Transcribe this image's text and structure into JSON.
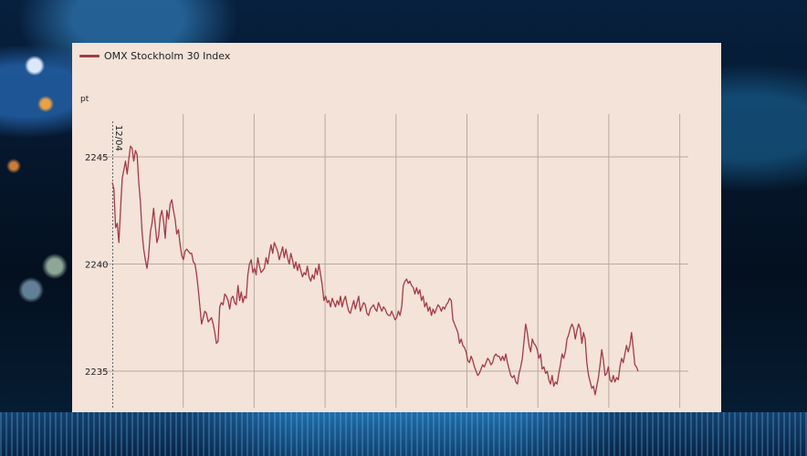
{
  "chart_data": {
    "type": "line",
    "legend": "OMX Stockholm 30 Index",
    "unit": "pt",
    "date_label": "12/04",
    "ylim": [
      2233.3,
      2247.0
    ],
    "yticks": [
      2235,
      2240,
      2245
    ],
    "series": [
      {
        "name": "OMX Stockholm 30 Index",
        "color": "#a33a47",
        "values": [
          2243.8,
          2243.5,
          2241.7,
          2241.9,
          2241.0,
          2242.6,
          2244.0,
          2244.4,
          2244.8,
          2244.2,
          2244.9,
          2245.5,
          2245.4,
          2244.8,
          2245.3,
          2245.1,
          2243.8,
          2242.9,
          2241.5,
          2240.7,
          2240.2,
          2239.8,
          2240.4,
          2241.5,
          2241.9,
          2242.6,
          2241.8,
          2241.0,
          2241.3,
          2242.2,
          2242.5,
          2242.0,
          2241.2,
          2242.5,
          2242.1,
          2242.8,
          2243.0,
          2242.5,
          2242.1,
          2241.4,
          2241.6,
          2240.9,
          2240.4,
          2240.2,
          2240.6,
          2240.7,
          2240.6,
          2240.5,
          2240.5,
          2240.1,
          2240.0,
          2239.5,
          2238.8,
          2238.0,
          2237.2,
          2237.5,
          2237.8,
          2237.7,
          2237.3,
          2237.4,
          2237.5,
          2237.2,
          2236.8,
          2236.3,
          2236.4,
          2238.0,
          2238.2,
          2238.1,
          2238.6,
          2238.5,
          2238.3,
          2237.9,
          2238.4,
          2238.5,
          2238.2,
          2238.1,
          2239.0,
          2238.3,
          2238.7,
          2238.2,
          2238.5,
          2238.4,
          2239.5,
          2240.0,
          2240.2,
          2239.6,
          2239.8,
          2239.5,
          2240.3,
          2239.9,
          2239.6,
          2239.7,
          2239.8,
          2240.3,
          2240.0,
          2240.5,
          2240.9,
          2240.5,
          2241.0,
          2240.8,
          2240.6,
          2240.2,
          2240.5,
          2240.8,
          2240.3,
          2240.7,
          2240.3,
          2240.0,
          2240.5,
          2240.2,
          2239.8,
          2240.1,
          2239.7,
          2240.0,
          2239.7,
          2239.4,
          2239.6,
          2239.5,
          2239.9,
          2239.4,
          2239.2,
          2239.5,
          2239.3,
          2239.8,
          2239.5,
          2240.0,
          2239.5,
          2239.0,
          2238.3,
          2238.5,
          2238.2,
          2238.3,
          2238.0,
          2238.4,
          2238.2,
          2238.0,
          2238.3,
          2238.1,
          2238.5,
          2238.0,
          2238.3,
          2238.5,
          2238.1,
          2237.8,
          2237.7,
          2238.0,
          2238.3,
          2237.9,
          2238.2,
          2238.5,
          2237.8,
          2238.0,
          2238.2,
          2238.1,
          2237.7,
          2237.6,
          2237.9,
          2238.0,
          2238.1,
          2237.9,
          2237.8,
          2238.2,
          2238.0,
          2237.8,
          2238.0,
          2237.9,
          2237.7,
          2237.6,
          2237.6,
          2237.8,
          2237.6,
          2237.4,
          2237.5,
          2237.8,
          2237.6,
          2238.0,
          2239.0,
          2239.2,
          2239.3,
          2239.1,
          2239.2,
          2239.0,
          2238.9,
          2238.6,
          2238.9,
          2238.6,
          2238.8,
          2238.3,
          2238.5,
          2238.0,
          2238.2,
          2237.8,
          2238.0,
          2237.6,
          2237.9,
          2237.7,
          2237.9,
          2238.1,
          2238.0,
          2237.8,
          2238.0,
          2237.9,
          2238.1,
          2238.2,
          2238.4,
          2238.3,
          2237.4,
          2237.2,
          2237.0,
          2236.8,
          2236.3,
          2236.5,
          2236.2,
          2236.1,
          2235.9,
          2235.5,
          2235.4,
          2235.7,
          2235.5,
          2235.2,
          2235.0,
          2234.8,
          2234.9,
          2235.1,
          2235.3,
          2235.2,
          2235.4,
          2235.6,
          2235.5,
          2235.3,
          2235.4,
          2235.7,
          2235.8,
          2235.7,
          2235.7,
          2235.5,
          2235.7,
          2235.5,
          2235.8,
          2235.4,
          2235.1,
          2234.8,
          2234.7,
          2234.8,
          2234.5,
          2234.4,
          2234.9,
          2235.2,
          2235.6,
          2236.4,
          2237.2,
          2236.8,
          2236.2,
          2235.9,
          2236.5,
          2236.3,
          2236.2,
          2236.0,
          2235.6,
          2235.8,
          2235.1,
          2235.2,
          2234.9,
          2235.0,
          2234.6,
          2234.4,
          2234.8,
          2234.3,
          2234.5,
          2234.4,
          2234.9,
          2235.3,
          2235.8,
          2235.6,
          2235.9,
          2236.5,
          2236.7,
          2237.0,
          2237.2,
          2237.0,
          2236.5,
          2236.9,
          2237.2,
          2237.0,
          2236.3,
          2236.8,
          2236.5,
          2235.4,
          2234.8,
          2234.5,
          2234.2,
          2234.3,
          2233.9,
          2234.3,
          2234.7,
          2235.3,
          2236.0,
          2235.5,
          2234.8,
          2234.9,
          2235.2,
          2234.6,
          2234.5,
          2234.8,
          2234.5,
          2234.7,
          2234.6,
          2235.2,
          2235.6,
          2235.4,
          2235.8,
          2236.2,
          2235.9,
          2236.2,
          2236.8,
          2236.1,
          2235.3,
          2235.2,
          2235.0
        ]
      }
    ]
  }
}
